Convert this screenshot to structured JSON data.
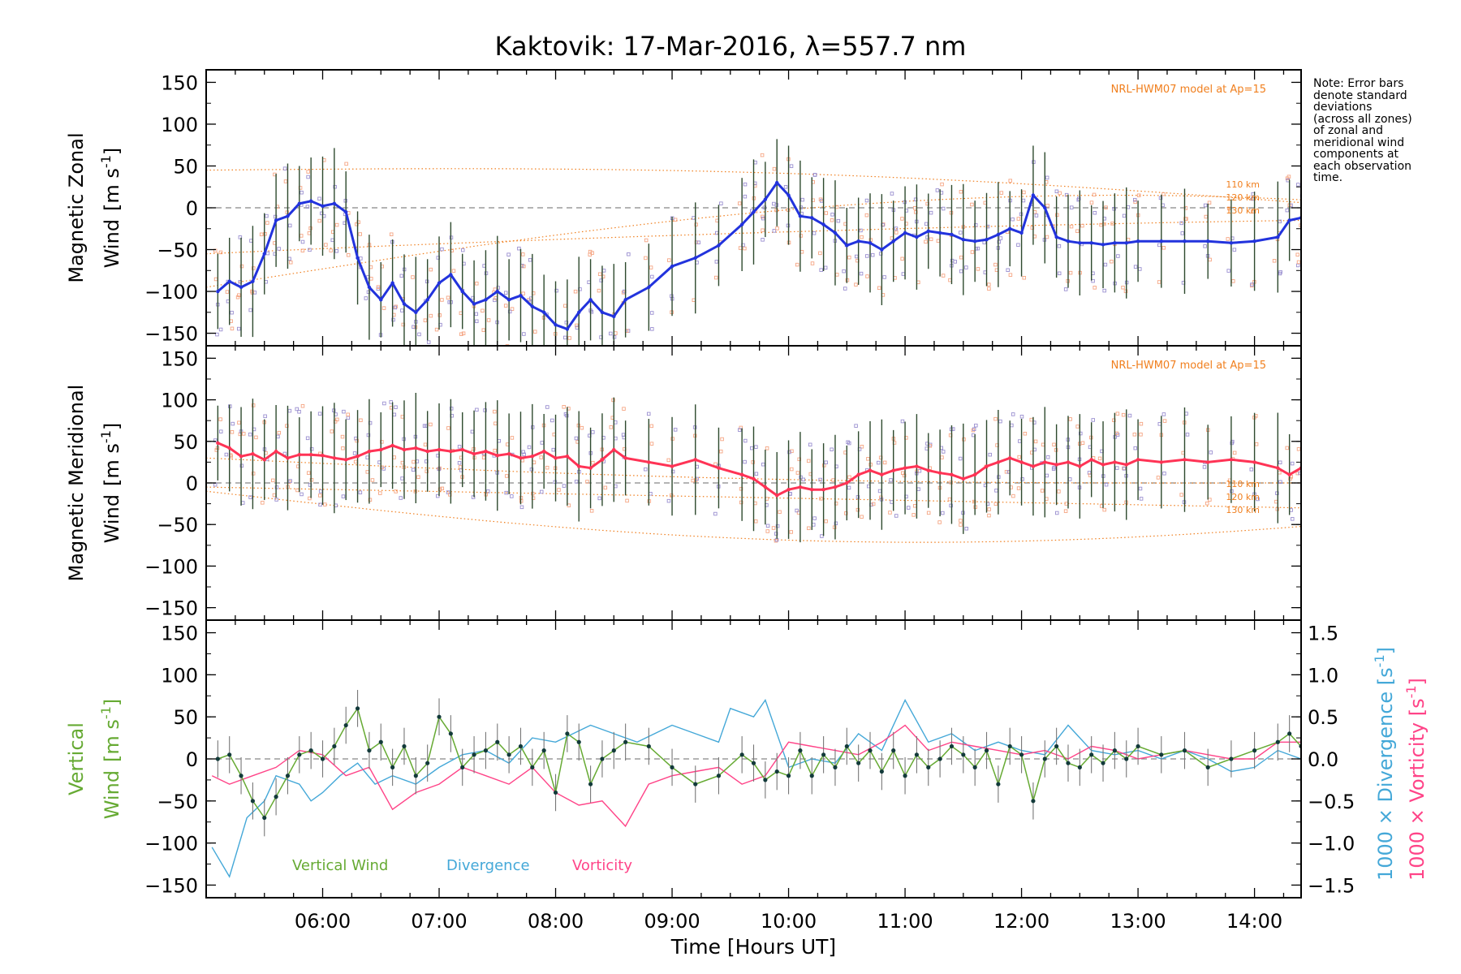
{
  "title": "Kaktovik: 17-Mar-2016, λ=557.7 nm",
  "note": [
    "Note: Error bars",
    "denote standard",
    "deviations",
    "(across all zones)",
    "of zonal and",
    "meridional wind",
    "components at",
    "each observation",
    "time."
  ],
  "colors": {
    "zonal": "#2233dd",
    "meridional": "#ff3355",
    "vertical": "#66aa33",
    "divergence": "#44a8d8",
    "vorticity": "#ff4488",
    "model": "#f07f1e",
    "scatter_a": "#9a8fd0",
    "scatter_b": "#f5a583",
    "errorbar": "#2e4a2e",
    "zeroline": "#888888"
  },
  "chart_data": [
    {
      "type": "line",
      "panel": "zonal",
      "ylabel_lines": [
        "Magnetic Zonal",
        "Wind"
      ],
      "ylabel_unit": "[m s",
      "ylabel_sup": "-1",
      "ylabel_close": "]",
      "ylim": [
        -165,
        165
      ],
      "yticks": [
        150,
        100,
        50,
        0,
        -50,
        -100,
        -150
      ],
      "model_label": "NRL-HWM07 model at Ap=15",
      "model_alts": [
        "110 km",
        "120 km",
        "130 km"
      ],
      "series": [
        {
          "role": "wind",
          "x": [
            5.1,
            5.2,
            5.3,
            5.4,
            5.5,
            5.6,
            5.7,
            5.8,
            5.9,
            6.0,
            6.1,
            6.2,
            6.3,
            6.4,
            6.5,
            6.6,
            6.7,
            6.8,
            6.9,
            7.0,
            7.1,
            7.2,
            7.3,
            7.4,
            7.5,
            7.6,
            7.7,
            7.8,
            7.9,
            8.0,
            8.1,
            8.2,
            8.3,
            8.4,
            8.5,
            8.6,
            8.8,
            9.0,
            9.2,
            9.4,
            9.6,
            9.7,
            9.8,
            9.9,
            10.0,
            10.1,
            10.2,
            10.3,
            10.4,
            10.5,
            10.6,
            10.7,
            10.8,
            10.9,
            11.0,
            11.1,
            11.2,
            11.3,
            11.4,
            11.5,
            11.6,
            11.7,
            11.8,
            11.9,
            12.0,
            12.1,
            12.2,
            12.3,
            12.4,
            12.5,
            12.6,
            12.7,
            12.8,
            12.9,
            13.0,
            13.2,
            13.4,
            13.6,
            13.8,
            14.0,
            14.2,
            14.3,
            14.4
          ],
          "y": [
            -100,
            -88,
            -95,
            -88,
            -55,
            -15,
            -10,
            5,
            8,
            2,
            5,
            -5,
            -60,
            -95,
            -110,
            -90,
            -115,
            -125,
            -110,
            -90,
            -80,
            -100,
            -115,
            -110,
            -100,
            -110,
            -105,
            -118,
            -125,
            -140,
            -145,
            -125,
            -110,
            -125,
            -130,
            -110,
            -95,
            -70,
            -60,
            -45,
            -20,
            -5,
            10,
            30,
            15,
            -10,
            -12,
            -20,
            -30,
            -45,
            -40,
            -42,
            -50,
            -40,
            -30,
            -35,
            -28,
            -30,
            -32,
            -38,
            -40,
            -38,
            -32,
            -25,
            -30,
            15,
            0,
            -35,
            -40,
            -42,
            -42,
            -44,
            -42,
            -42,
            -40,
            -40,
            -40,
            -40,
            -42,
            -40,
            -35,
            -15,
            -12
          ]
        }
      ]
    },
    {
      "type": "line",
      "panel": "meridional",
      "ylabel_lines": [
        "Magnetic Meridional",
        "Wind"
      ],
      "ylabel_unit": "[m s",
      "ylabel_sup": "-1",
      "ylabel_close": "]",
      "ylim": [
        -165,
        165
      ],
      "yticks": [
        150,
        100,
        50,
        0,
        -50,
        -100,
        -150
      ],
      "model_label": "NRL-HWM07 model at Ap=15",
      "model_alts": [
        "110 km",
        "120 km",
        "130 km"
      ],
      "series": [
        {
          "role": "wind",
          "x": [
            5.1,
            5.2,
            5.3,
            5.4,
            5.5,
            5.6,
            5.7,
            5.8,
            5.9,
            6.0,
            6.1,
            6.2,
            6.3,
            6.4,
            6.5,
            6.6,
            6.7,
            6.8,
            6.9,
            7.0,
            7.1,
            7.2,
            7.3,
            7.4,
            7.5,
            7.6,
            7.7,
            7.8,
            7.9,
            8.0,
            8.1,
            8.2,
            8.3,
            8.4,
            8.5,
            8.6,
            8.8,
            9.0,
            9.2,
            9.4,
            9.6,
            9.7,
            9.8,
            9.9,
            10.0,
            10.1,
            10.2,
            10.3,
            10.4,
            10.5,
            10.6,
            10.7,
            10.8,
            10.9,
            11.0,
            11.1,
            11.2,
            11.3,
            11.4,
            11.5,
            11.6,
            11.7,
            11.8,
            11.9,
            12.0,
            12.1,
            12.2,
            12.3,
            12.4,
            12.5,
            12.6,
            12.7,
            12.8,
            12.9,
            13.0,
            13.2,
            13.4,
            13.6,
            13.8,
            14.0,
            14.2,
            14.3,
            14.4
          ],
          "y": [
            48,
            42,
            32,
            35,
            28,
            38,
            30,
            34,
            34,
            33,
            30,
            28,
            32,
            38,
            40,
            45,
            40,
            42,
            38,
            40,
            38,
            40,
            35,
            38,
            33,
            35,
            30,
            32,
            38,
            30,
            32,
            20,
            18,
            28,
            40,
            30,
            25,
            20,
            28,
            18,
            10,
            5,
            -5,
            -15,
            -8,
            -5,
            -8,
            -8,
            -5,
            0,
            10,
            15,
            10,
            15,
            18,
            20,
            15,
            12,
            10,
            5,
            10,
            20,
            25,
            30,
            25,
            20,
            25,
            22,
            25,
            20,
            28,
            22,
            25,
            22,
            28,
            25,
            28,
            25,
            28,
            25,
            18,
            10,
            18
          ]
        }
      ]
    },
    {
      "type": "line",
      "panel": "vertical",
      "ylabel_lines": [
        "Vertical",
        "Wind"
      ],
      "ylabel_unit": "[m s",
      "ylabel_sup": "-1",
      "ylabel_close": "]",
      "ylim": [
        -165,
        165
      ],
      "yticks": [
        150,
        100,
        50,
        0,
        -50,
        -100,
        -150
      ],
      "y2lim": [
        -1.65,
        1.65
      ],
      "y2ticks": [
        1.5,
        1.0,
        0.5,
        0.0,
        -0.5,
        -1.0,
        -1.5
      ],
      "y2labels": [
        "1.5",
        "1.0",
        "0.5",
        "0.0",
        "−0.5",
        "−1.0",
        "−1.5"
      ],
      "y2label_div": "1000 × Divergence [s",
      "y2label_vor": "1000 × Vorticity [s",
      "y2label_sup": "-1",
      "y2label_close": "]",
      "legend": [
        "Vertical Wind",
        "Divergence",
        "Vorticity"
      ],
      "xlabel": "Time [Hours UT]",
      "xlim": [
        5.0,
        14.4
      ],
      "xticks": [
        6,
        7,
        8,
        9,
        10,
        11,
        12,
        13,
        14
      ],
      "xticklabels": [
        "06:00",
        "07:00",
        "08:00",
        "09:00",
        "10:00",
        "11:00",
        "12:00",
        "13:00",
        "14:00"
      ],
      "series": [
        {
          "name": "Vertical Wind",
          "axis": "left",
          "x": [
            5.1,
            5.2,
            5.3,
            5.4,
            5.5,
            5.6,
            5.7,
            5.8,
            5.9,
            6.0,
            6.1,
            6.2,
            6.3,
            6.4,
            6.5,
            6.6,
            6.7,
            6.8,
            6.9,
            7.0,
            7.1,
            7.2,
            7.3,
            7.4,
            7.5,
            7.6,
            7.7,
            7.8,
            7.9,
            8.0,
            8.1,
            8.2,
            8.3,
            8.4,
            8.5,
            8.6,
            8.8,
            9.0,
            9.2,
            9.4,
            9.6,
            9.7,
            9.8,
            9.9,
            10.0,
            10.1,
            10.2,
            10.3,
            10.4,
            10.5,
            10.6,
            10.7,
            10.8,
            10.9,
            11.0,
            11.1,
            11.2,
            11.3,
            11.4,
            11.5,
            11.6,
            11.7,
            11.8,
            11.9,
            12.0,
            12.1,
            12.2,
            12.3,
            12.4,
            12.5,
            12.6,
            12.7,
            12.8,
            12.9,
            13.0,
            13.2,
            13.4,
            13.6,
            13.8,
            14.0,
            14.2,
            14.3,
            14.4
          ],
          "y": [
            0,
            5,
            -20,
            -50,
            -70,
            -45,
            -20,
            5,
            10,
            0,
            15,
            40,
            60,
            10,
            20,
            -10,
            15,
            -20,
            -5,
            50,
            30,
            -10,
            5,
            10,
            20,
            5,
            15,
            -10,
            10,
            -40,
            30,
            20,
            -30,
            0,
            10,
            20,
            15,
            -10,
            -30,
            -20,
            5,
            -5,
            -25,
            -15,
            -20,
            10,
            -20,
            5,
            -10,
            15,
            -5,
            10,
            -15,
            10,
            -20,
            5,
            -10,
            0,
            15,
            5,
            -10,
            10,
            -30,
            15,
            5,
            -50,
            0,
            15,
            -5,
            -10,
            5,
            -5,
            10,
            0,
            15,
            5,
            10,
            -10,
            0,
            10,
            20,
            30,
            15
          ]
        },
        {
          "name": "Divergence",
          "axis": "right",
          "x": [
            5.05,
            5.2,
            5.35,
            5.5,
            5.6,
            5.8,
            5.9,
            6.0,
            6.15,
            6.3,
            6.45,
            6.6,
            6.8,
            7.0,
            7.2,
            7.4,
            7.6,
            7.8,
            8.0,
            8.15,
            8.3,
            8.5,
            8.7,
            9.0,
            9.2,
            9.4,
            9.5,
            9.7,
            9.8,
            10.0,
            10.2,
            10.4,
            10.6,
            10.8,
            11.0,
            11.2,
            11.4,
            11.6,
            11.8,
            12.0,
            12.2,
            12.4,
            12.6,
            12.8,
            13.0,
            13.2,
            13.4,
            13.6,
            13.8,
            14.0,
            14.2,
            14.4
          ],
          "y": [
            -1.05,
            -1.4,
            -0.7,
            -0.5,
            -0.2,
            -0.3,
            -0.5,
            -0.4,
            -0.2,
            -0.05,
            -0.3,
            -0.2,
            -0.3,
            -0.1,
            0.05,
            0.1,
            -0.05,
            0.25,
            0.2,
            0.3,
            0.4,
            0.3,
            0.2,
            0.4,
            0.3,
            0.2,
            0.6,
            0.5,
            0.7,
            -0.1,
            0.0,
            -0.05,
            0.3,
            0.1,
            0.7,
            0.2,
            0.3,
            0.1,
            0.2,
            0.1,
            0.05,
            0.4,
            0.1,
            0.05,
            0.1,
            0.0,
            0.1,
            0.0,
            -0.15,
            -0.1,
            0.1,
            0.0
          ]
        },
        {
          "name": "Vorticity",
          "axis": "right",
          "x": [
            5.05,
            5.2,
            5.4,
            5.6,
            5.8,
            6.0,
            6.2,
            6.4,
            6.6,
            6.8,
            7.0,
            7.2,
            7.4,
            7.6,
            7.8,
            8.0,
            8.2,
            8.4,
            8.6,
            8.8,
            9.0,
            9.2,
            9.4,
            9.6,
            9.8,
            10.0,
            10.2,
            10.4,
            10.6,
            10.8,
            11.0,
            11.2,
            11.4,
            11.6,
            11.8,
            12.0,
            12.2,
            12.4,
            12.6,
            12.8,
            13.0,
            13.2,
            13.4,
            13.6,
            13.8,
            14.0,
            14.2,
            14.4
          ],
          "y": [
            -0.2,
            -0.3,
            -0.2,
            -0.1,
            0.1,
            0.05,
            -0.2,
            -0.1,
            -0.6,
            -0.4,
            -0.3,
            -0.1,
            -0.2,
            -0.3,
            -0.1,
            -0.4,
            -0.55,
            -0.5,
            -0.8,
            -0.3,
            -0.2,
            -0.15,
            -0.1,
            -0.3,
            -0.2,
            0.2,
            0.15,
            0.1,
            0.05,
            0.2,
            0.4,
            0.1,
            0.2,
            0.15,
            0.1,
            0.05,
            0.1,
            0.0,
            0.15,
            0.1,
            0.0,
            0.05,
            0.1,
            0.05,
            0.0,
            0.0,
            0.2,
            0.2
          ]
        }
      ]
    }
  ]
}
